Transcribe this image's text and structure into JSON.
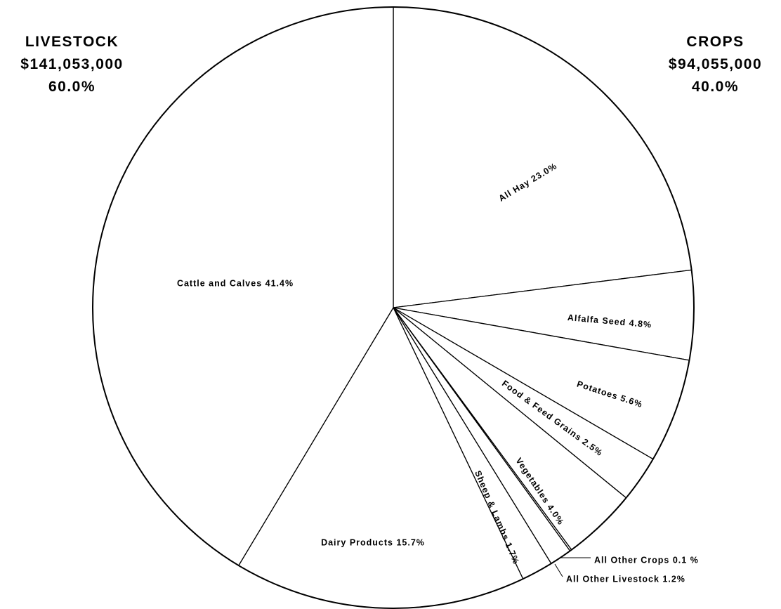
{
  "livestock": {
    "heading": "LIVESTOCK",
    "amount": "$141,053,000",
    "percent": "60.0%"
  },
  "crops": {
    "heading": "CROPS",
    "amount": "$94,055,000",
    "percent": "40.0%"
  },
  "chart_data": {
    "type": "pie",
    "start": "12 o'clock",
    "direction": "clockwise",
    "slices": [
      {
        "label": "All Hay 23.0%",
        "value": 23.0,
        "group": "crops"
      },
      {
        "label": "Alfalfa Seed 4.8%",
        "value": 4.8,
        "group": "crops"
      },
      {
        "label": "Potatoes 5.6%",
        "value": 5.6,
        "group": "crops"
      },
      {
        "label": "Food & Feed Grains 2.5%",
        "value": 2.5,
        "group": "crops"
      },
      {
        "label": "Vegetables 4.0%",
        "value": 4.0,
        "group": "crops"
      },
      {
        "label": "All Other Crops 0.1 %",
        "value": 0.1,
        "group": "crops"
      },
      {
        "label": "All Other Livestock 1.2%",
        "value": 1.2,
        "group": "livestock"
      },
      {
        "label": "Sheep & Lambs 1.7%",
        "value": 1.7,
        "group": "livestock"
      },
      {
        "label": "Dairy Products 15.7%",
        "value": 15.7,
        "group": "livestock"
      },
      {
        "label": "Cattle and Calves 41.4%",
        "value": 41.4,
        "group": "livestock"
      }
    ],
    "fill_color": "#ffffff",
    "line_color": "#000000"
  }
}
